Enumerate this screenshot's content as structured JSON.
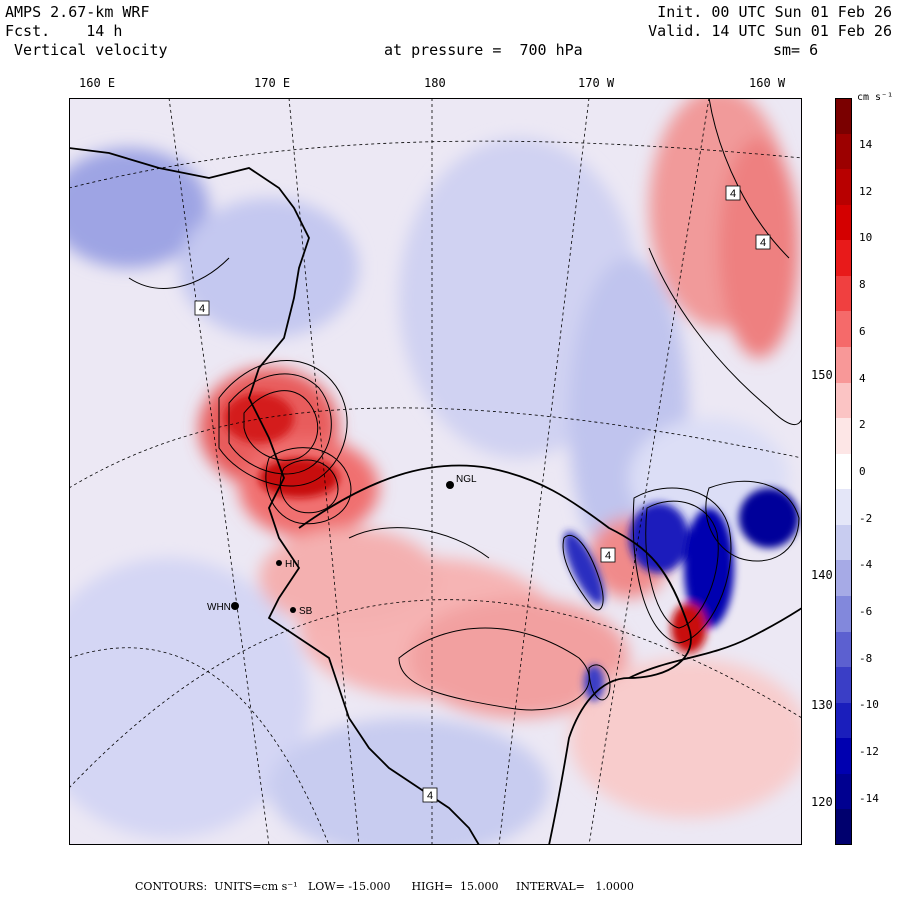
{
  "header": {
    "model": "AMPS 2.67-km WRF",
    "forecast": "Fcst.    14 h",
    "field": " Vertical velocity",
    "init": "Init. 00 UTC Sun 01 Feb 26",
    "valid": "Valid. 14 UTC Sun 01 Feb 26",
    "pressure": "at pressure =  700 hPa",
    "smoothing": "sm= 6"
  },
  "longitude_labels": [
    "160 E",
    "170 E",
    "180",
    "170 W",
    "160 W"
  ],
  "latitude_labels": [
    "150 W",
    "140 W",
    "130 W",
    "120 W"
  ],
  "colorbar": {
    "unit": "cm s⁻¹",
    "ticks": [
      "14",
      "12",
      "10",
      "8",
      "6",
      "4",
      "2",
      "0",
      "-2",
      "-4",
      "-6",
      "-8",
      "-10",
      "-12",
      "-14"
    ],
    "colors": [
      "#7a0000",
      "#9c0000",
      "#b80000",
      "#d40000",
      "#e81a1a",
      "#f04040",
      "#f56a6a",
      "#f89898",
      "#fbc4c4",
      "#fde6e6",
      "#ffffff",
      "#e4e6f8",
      "#c8ccf0",
      "#a6aae6",
      "#8288dc",
      "#5c60d0",
      "#3a3ec6",
      "#1a1ebc",
      "#0000b0",
      "#000090",
      "#00006e"
    ]
  },
  "stations": [
    "NGL",
    "WHN",
    "HN",
    "SB"
  ],
  "map_labels": [
    "4",
    "4",
    "4",
    "4",
    "4"
  ],
  "footer": "CONTOURS:  UNITS=cm s⁻¹   LOW= -15.000      HIGH=  15.000     INTERVAL=   1.0000",
  "colors": {
    "up": "#e04848",
    "down": "#3a3ec6",
    "neutral": "#f2eef6"
  }
}
